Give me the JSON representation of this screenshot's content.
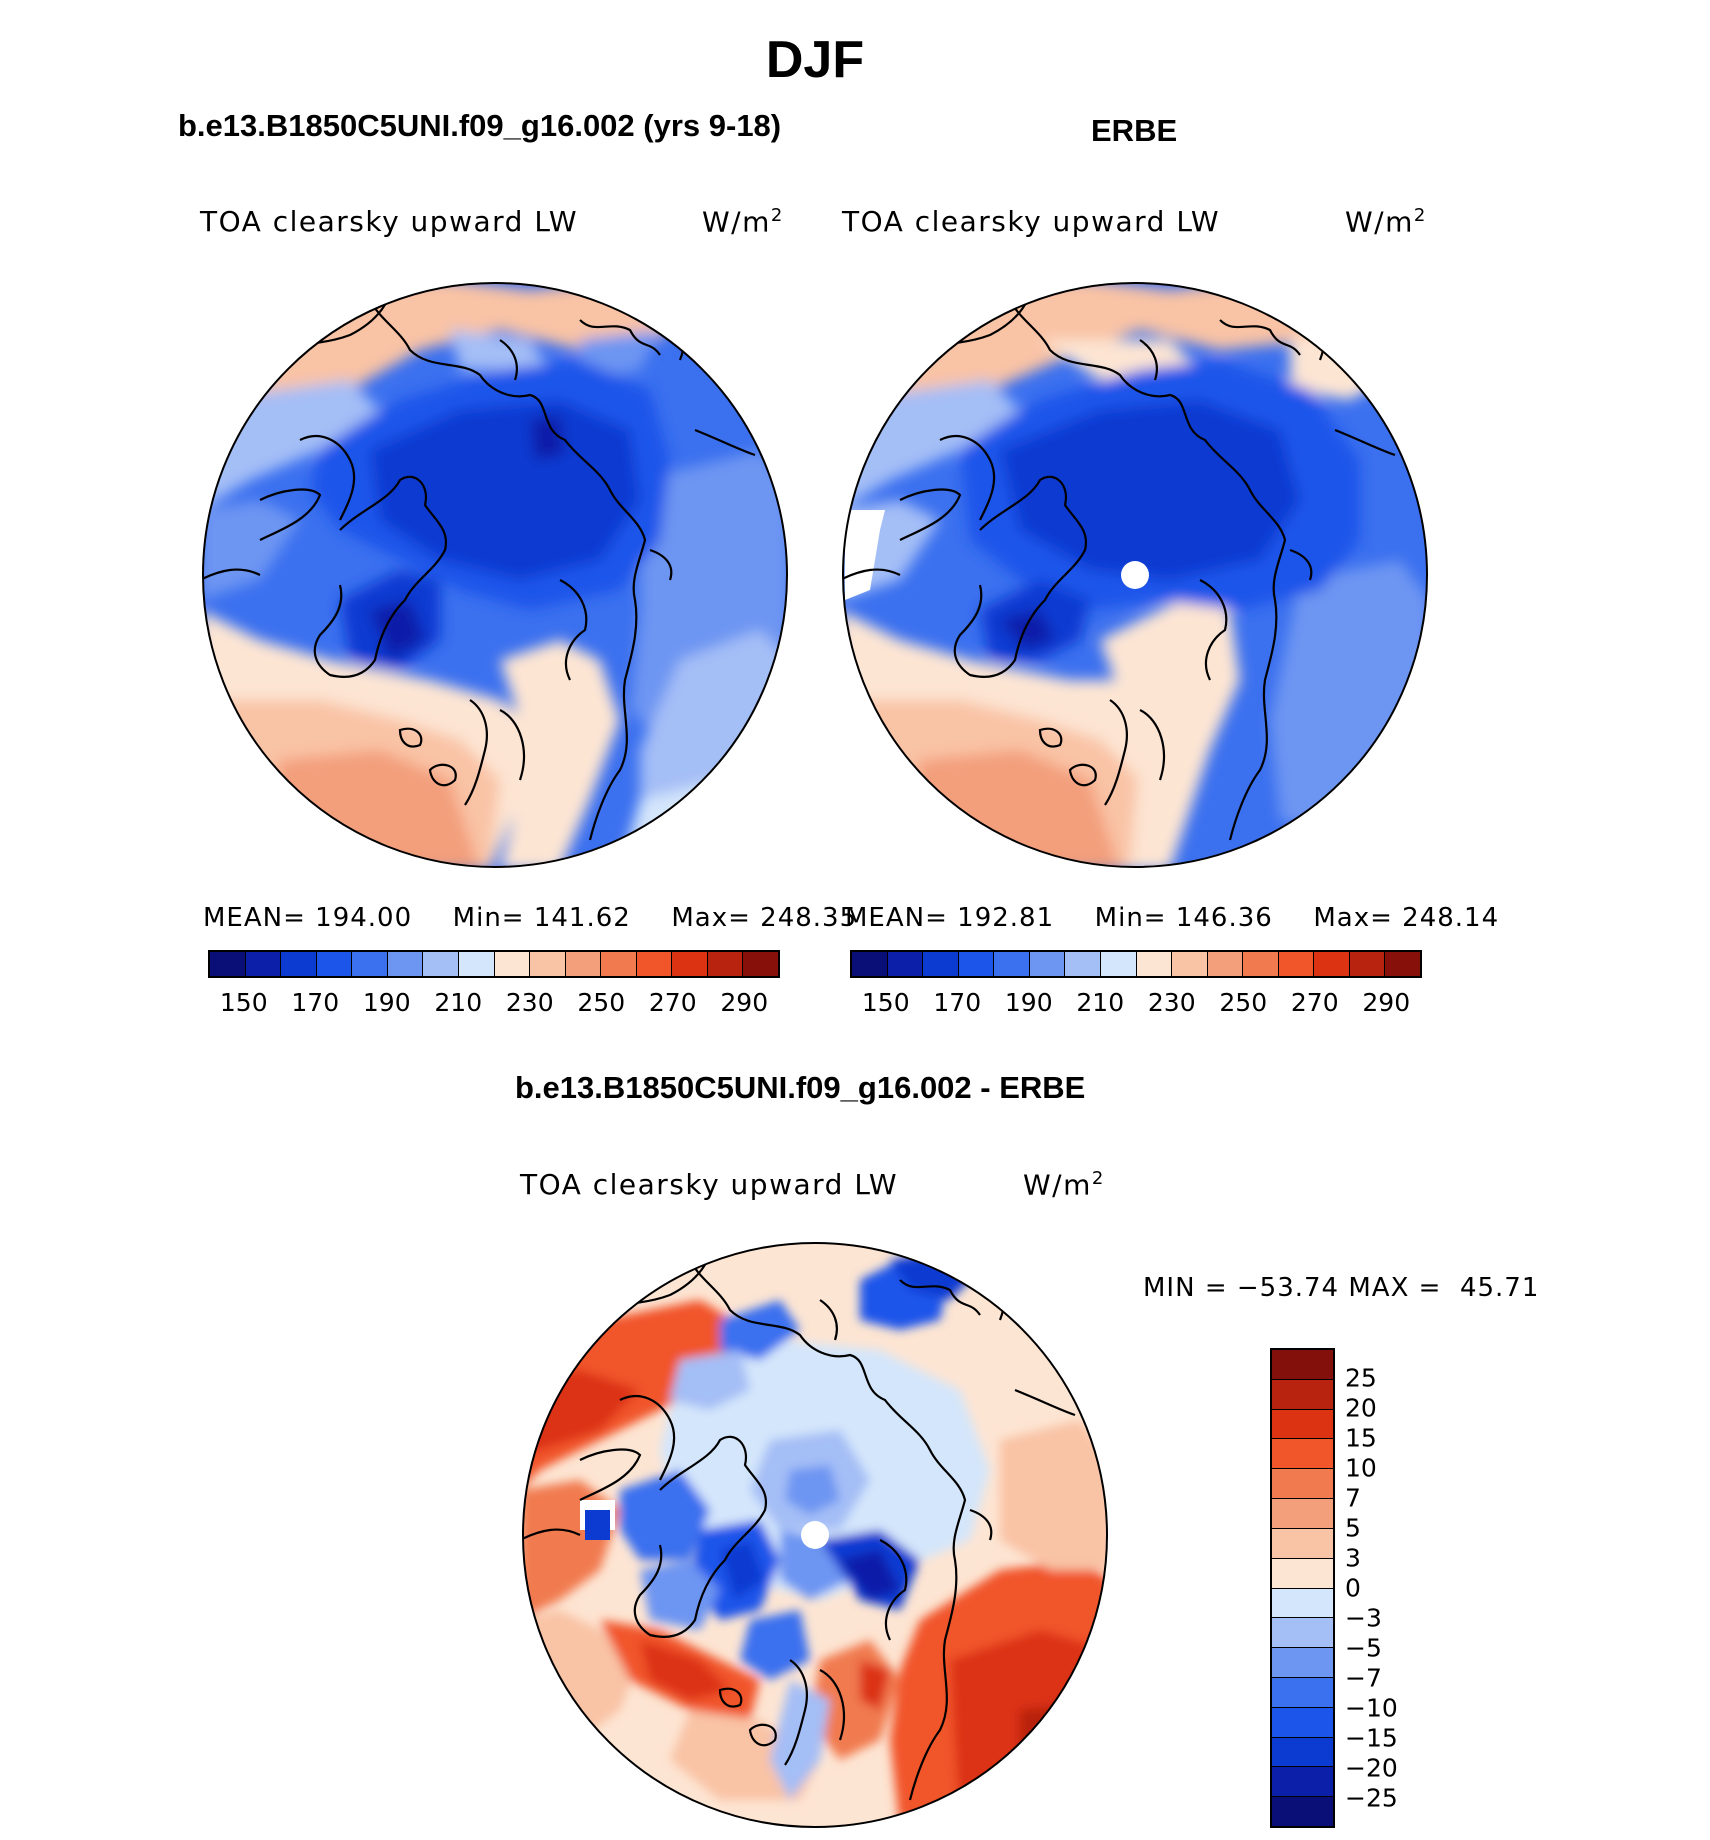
{
  "figure": {
    "title": "DJF",
    "panel_left": {
      "header": "b.e13.B1850C5UNI.f09_g16.002 (yrs 9-18)",
      "variable": "TOA clearsky upward LW",
      "units": "W/m",
      "units_sup": "2",
      "stats": {
        "mean": "MEAN= 194.00",
        "min": "Min= 141.62",
        "max": "Max= 248.35"
      }
    },
    "panel_right": {
      "header": "ERBE",
      "variable": "TOA clearsky upward LW",
      "units": "W/m",
      "units_sup": "2",
      "stats": {
        "mean": "MEAN= 192.81",
        "min": "Min= 146.36",
        "max": "Max= 248.14"
      }
    },
    "panel_diff": {
      "header": "b.e13.B1850C5UNI.f09_g16.002 - ERBE",
      "variable": "TOA clearsky upward LW",
      "units": "W/m",
      "units_sup": "2",
      "minmax": "MIN = −53.74 MAX =  45.71"
    }
  },
  "colorbars": {
    "abs": {
      "colors": [
        "#0a0f78",
        "#0b1fa8",
        "#0c3bd2",
        "#1c55ea",
        "#3b70ef",
        "#6d95f2",
        "#a4bef6",
        "#d4e6fb",
        "#fde5d3",
        "#f9c3a5",
        "#f39f7c",
        "#f17a4f",
        "#f1552a",
        "#dc3312",
        "#b8230f",
        "#87100b"
      ],
      "ticks": [
        "150",
        "170",
        "190",
        "210",
        "230",
        "250",
        "270",
        "290"
      ]
    },
    "diff": {
      "colors": [
        "#84100c",
        "#b8230f",
        "#dc3312",
        "#f1552a",
        "#f17a4f",
        "#f39f7c",
        "#f9c3a5",
        "#fde5d3",
        "#d4e6fb",
        "#a4bef6",
        "#6d95f2",
        "#3b70ef",
        "#1c55ea",
        "#0c3bd2",
        "#0b1fa8",
        "#0a0f78"
      ],
      "ticks": [
        "25",
        "20",
        "15",
        "10",
        "7",
        "5",
        "3",
        "0",
        "−3",
        "−5",
        "−7",
        "−10",
        "−15",
        "−20",
        "−25"
      ]
    }
  }
}
